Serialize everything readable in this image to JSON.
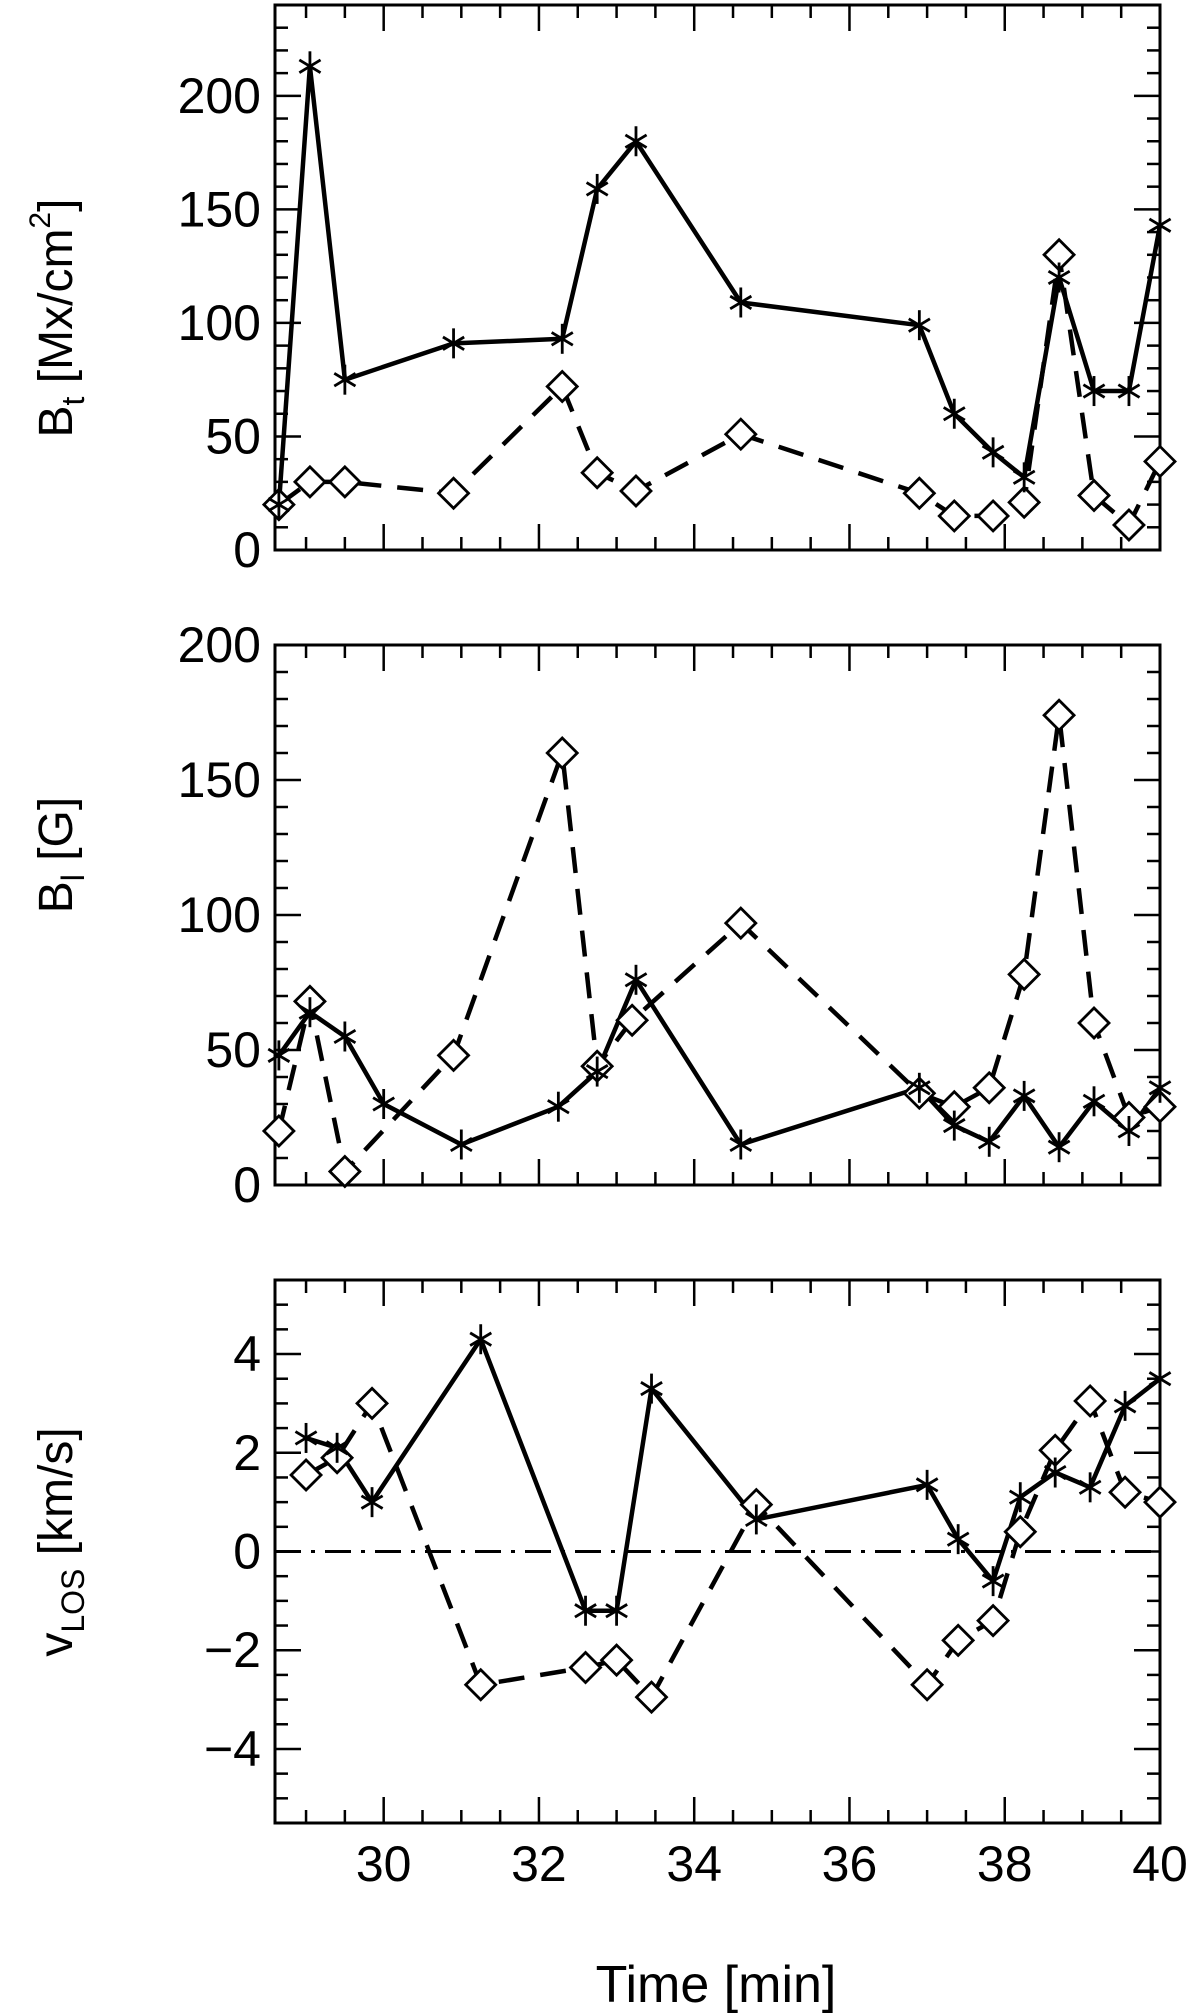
{
  "chart_data": [
    {
      "type": "line",
      "ylabel": "B",
      "ylabel_sub": "t",
      "ylabel_unit": " [Mx/cm",
      "ylabel_sup": "2",
      "ylabel_end": "]",
      "xlim": [
        28.6,
        40
      ],
      "ylim": [
        0,
        240
      ],
      "yticks": [
        0,
        50,
        100,
        150,
        200
      ],
      "yminor": 10,
      "series": [
        {
          "style": "solid",
          "marker": "asterisk",
          "x": [
            28.65,
            29.05,
            29.5,
            30.9,
            32.3,
            32.75,
            33.25,
            34.6,
            36.9,
            37.35,
            37.85,
            38.25,
            38.7,
            39.15,
            39.6,
            40.0
          ],
          "y": [
            20,
            213,
            75,
            91,
            93,
            159,
            180,
            109,
            99,
            60,
            43,
            32,
            120,
            70,
            70,
            143
          ]
        },
        {
          "style": "dashed",
          "marker": "diamond",
          "x": [
            28.65,
            29.05,
            29.5,
            30.9,
            32.3,
            32.75,
            33.25,
            34.6,
            36.9,
            37.35,
            37.85,
            38.25,
            38.7,
            39.15,
            39.6,
            40.0
          ],
          "y": [
            20,
            30,
            30,
            25,
            72,
            34,
            26,
            51,
            25,
            15,
            15,
            21,
            130,
            24,
            11,
            39
          ]
        }
      ]
    },
    {
      "type": "line",
      "ylabel": "B",
      "ylabel_sub": "l",
      "ylabel_unit": " [G]",
      "xlim": [
        28.6,
        40
      ],
      "ylim": [
        0,
        200
      ],
      "yticks": [
        0,
        50,
        100,
        150,
        200
      ],
      "yminor": 10,
      "series": [
        {
          "style": "solid",
          "marker": "asterisk",
          "x": [
            28.65,
            29.05,
            29.5,
            30.0,
            31.0,
            32.25,
            32.75,
            33.25,
            34.6,
            36.9,
            37.35,
            37.8,
            38.25,
            38.7,
            39.15,
            39.6,
            40.0
          ],
          "y": [
            48,
            64,
            55,
            30,
            15,
            29,
            42,
            76,
            15,
            36,
            22,
            16,
            33,
            14,
            31,
            20,
            36
          ]
        },
        {
          "style": "dashed",
          "marker": "diamond",
          "x": [
            28.65,
            29.05,
            29.5,
            30.9,
            32.3,
            32.75,
            33.2,
            34.6,
            36.9,
            37.35,
            37.8,
            38.25,
            38.7,
            39.15,
            39.6,
            40.0
          ],
          "y": [
            20,
            68,
            5,
            48,
            160,
            44,
            61,
            97,
            34,
            29,
            36,
            78,
            174,
            60,
            25,
            29
          ]
        }
      ]
    },
    {
      "type": "line",
      "ylabel": "v",
      "ylabel_sub": "LOS",
      "ylabel_unit": " [km/s]",
      "xlabel": "Time [min]",
      "xlim": [
        28.6,
        40
      ],
      "xticks": [
        30,
        32,
        34,
        36,
        38,
        40
      ],
      "ylim": [
        -5.5,
        5.5
      ],
      "yticks": [
        -4,
        -2,
        0,
        2,
        4
      ],
      "yminor": 0.5,
      "zero_line": true,
      "series": [
        {
          "style": "solid",
          "marker": "asterisk",
          "x": [
            29.0,
            29.4,
            29.85,
            31.25,
            32.6,
            33.0,
            33.45,
            34.8,
            37.0,
            37.4,
            37.85,
            38.2,
            38.65,
            39.1,
            39.55,
            40.0
          ],
          "y": [
            2.3,
            2.1,
            1.0,
            4.3,
            -1.2,
            -1.2,
            3.3,
            0.65,
            1.35,
            0.25,
            -0.6,
            1.1,
            1.6,
            1.3,
            2.95,
            3.5
          ]
        },
        {
          "style": "dashed",
          "marker": "diamond",
          "x": [
            29.0,
            29.4,
            29.85,
            31.25,
            32.6,
            33.0,
            33.45,
            34.8,
            37.0,
            37.4,
            37.85,
            38.2,
            38.65,
            39.1,
            39.55,
            40.0
          ],
          "y": [
            1.55,
            1.9,
            3.0,
            -2.7,
            -2.35,
            -2.2,
            -2.95,
            0.95,
            -2.7,
            -1.8,
            -1.4,
            0.4,
            2.05,
            3.05,
            1.2,
            1.0
          ]
        }
      ]
    }
  ]
}
